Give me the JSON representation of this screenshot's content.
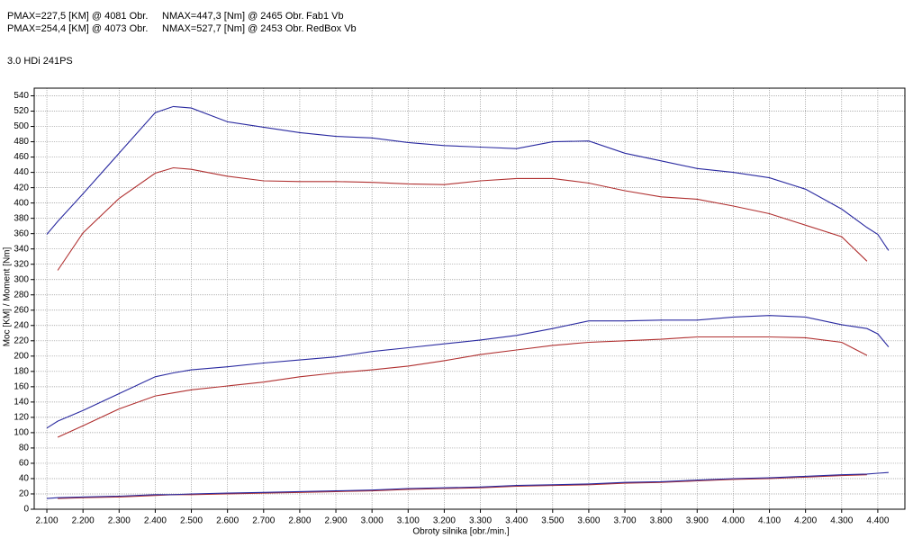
{
  "chart_data": {
    "type": "line",
    "title": "3.0 HDi 241PS",
    "xlabel": "Obroty silnika [obr./min.]",
    "ylabel": "Moc [KM] / Moment [Nm]",
    "grid": true,
    "xlim": [
      2065,
      4475
    ],
    "ylim": [
      0,
      550
    ],
    "xticks": [
      {
        "value": 2100,
        "label": "2.100"
      },
      {
        "value": 2200,
        "label": "2.200"
      },
      {
        "value": 2300,
        "label": "2.300"
      },
      {
        "value": 2400,
        "label": "2.400"
      },
      {
        "value": 2500,
        "label": "2.500"
      },
      {
        "value": 2600,
        "label": "2.600"
      },
      {
        "value": 2700,
        "label": "2.700"
      },
      {
        "value": 2800,
        "label": "2.800"
      },
      {
        "value": 2900,
        "label": "2.900"
      },
      {
        "value": 3000,
        "label": "3.000"
      },
      {
        "value": 3100,
        "label": "3.100"
      },
      {
        "value": 3200,
        "label": "3.200"
      },
      {
        "value": 3300,
        "label": "3.300"
      },
      {
        "value": 3400,
        "label": "3.400"
      },
      {
        "value": 3500,
        "label": "3.500"
      },
      {
        "value": 3600,
        "label": "3.600"
      },
      {
        "value": 3700,
        "label": "3.700"
      },
      {
        "value": 3800,
        "label": "3.800"
      },
      {
        "value": 3900,
        "label": "3.900"
      },
      {
        "value": 4000,
        "label": "4.000"
      },
      {
        "value": 4100,
        "label": "4.100"
      },
      {
        "value": 4200,
        "label": "4.200"
      },
      {
        "value": 4300,
        "label": "4.300"
      },
      {
        "value": 4400,
        "label": "4.400"
      }
    ],
    "yticks": [
      0,
      20,
      40,
      60,
      80,
      100,
      120,
      140,
      160,
      180,
      200,
      220,
      240,
      260,
      280,
      300,
      320,
      340,
      360,
      380,
      400,
      420,
      440,
      460,
      480,
      500,
      520,
      540
    ],
    "x": [
      2100,
      2130,
      2200,
      2300,
      2400,
      2450,
      2500,
      2600,
      2700,
      2800,
      2900,
      3000,
      3100,
      3200,
      3300,
      3400,
      3500,
      3600,
      3700,
      3800,
      3900,
      4000,
      4100,
      4200,
      4300,
      4370,
      4400,
      4430
    ],
    "series": [
      {
        "name": "Fab1 Vb",
        "pmax": "PMAX=227,5 [KM] @ 4081 Obr.",
        "nmax": "NMAX=447,3 [Nm] @ 2465 Obr.",
        "color": "#b03030",
        "values": [
          null,
          312,
          361,
          406,
          439,
          446,
          444,
          435,
          429,
          428,
          428,
          427,
          425,
          424,
          429,
          432,
          432,
          426,
          416,
          408,
          405,
          396,
          386,
          371,
          356,
          324,
          null,
          null
        ]
      },
      {
        "name": "RedBox Vb",
        "pmax": "PMAX=254,4 [KM] @ 4073 Obr.",
        "nmax": "NMAX=527,7 [Nm] @ 2453 Obr.",
        "color": "#2a2aa0",
        "values": [
          359,
          376,
          412,
          465,
          518,
          526,
          524,
          506,
          499,
          492,
          487,
          485,
          479,
          475,
          473,
          471,
          480,
          481,
          465,
          455,
          445,
          440,
          433,
          418,
          392,
          368,
          359,
          338
        ]
      },
      {
        "color": "#b03030",
        "values": [
          null,
          94,
          109,
          131,
          148,
          152,
          156,
          161,
          166,
          173,
          178,
          182,
          187,
          194,
          202,
          208,
          214,
          218,
          220,
          222,
          225,
          225,
          225,
          224,
          218,
          201,
          null,
          null
        ]
      },
      {
        "color": "#2a2aa0",
        "values": [
          106,
          115,
          129,
          151,
          173,
          178,
          182,
          186,
          191,
          195,
          199,
          206,
          211,
          216,
          221,
          227,
          236,
          246,
          246,
          247,
          247,
          251,
          253,
          251,
          241,
          236,
          229,
          212
        ]
      },
      {
        "color": "#b03030",
        "values": [
          null,
          14,
          15,
          16,
          18,
          19,
          19,
          20,
          21,
          22,
          23,
          24,
          26,
          27,
          28,
          30,
          31,
          32,
          34,
          35,
          37,
          39,
          40,
          42,
          44,
          45,
          null,
          null
        ]
      },
      {
        "color": "#2a2aa0",
        "values": [
          14,
          15,
          16,
          17,
          19,
          19,
          20,
          21,
          22,
          23,
          24,
          25,
          27,
          28,
          29,
          31,
          32,
          33,
          35,
          36,
          38,
          40,
          41,
          43,
          45,
          46,
          47,
          48
        ]
      }
    ]
  }
}
